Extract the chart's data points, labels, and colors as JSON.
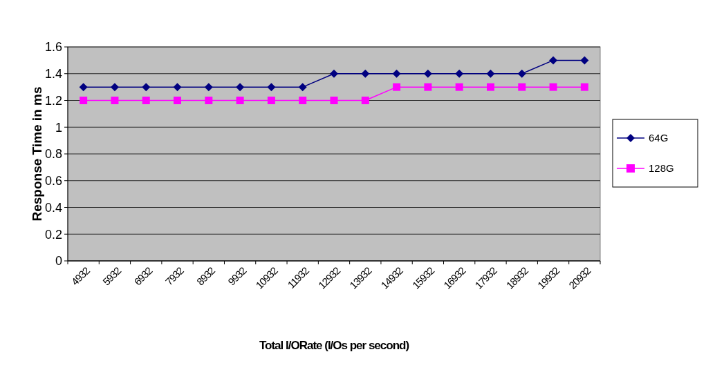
{
  "chart_data": {
    "type": "line",
    "xlabel": "Total I/ORate (I/Os per second)",
    "ylabel": "Response Time in ms",
    "categories": [
      "4932",
      "5932",
      "6932",
      "7932",
      "8932",
      "9932",
      "10932",
      "11932",
      "12932",
      "13932",
      "14932",
      "15932",
      "16932",
      "17932",
      "18932",
      "19932",
      "20932"
    ],
    "series": [
      {
        "name": "64G",
        "color": "#000080",
        "marker": "diamond",
        "values": [
          1.3,
          1.3,
          1.3,
          1.3,
          1.3,
          1.3,
          1.3,
          1.3,
          1.4,
          1.4,
          1.4,
          1.4,
          1.4,
          1.4,
          1.4,
          1.5,
          1.5
        ]
      },
      {
        "name": "128G",
        "color": "#ff00ff",
        "marker": "square",
        "values": [
          1.2,
          1.2,
          1.2,
          1.2,
          1.2,
          1.2,
          1.2,
          1.2,
          1.2,
          1.2,
          1.3,
          1.3,
          1.3,
          1.3,
          1.3,
          1.3,
          1.3
        ]
      }
    ],
    "ylim": [
      0,
      1.6
    ],
    "yticks": [
      0,
      {
        "value": 0.2,
        "label": "0.2"
      },
      {
        "value": 0.4,
        "label": "0.4"
      },
      {
        "value": 0.6,
        "label": "0.6"
      },
      {
        "value": 0.8,
        "label": "0.8"
      },
      1,
      {
        "value": 1.2,
        "label": "1.2"
      },
      {
        "value": 1.4,
        "label": "1.4"
      },
      {
        "value": 1.6,
        "label": "1.6"
      }
    ],
    "grid": "y",
    "legend": "right"
  }
}
